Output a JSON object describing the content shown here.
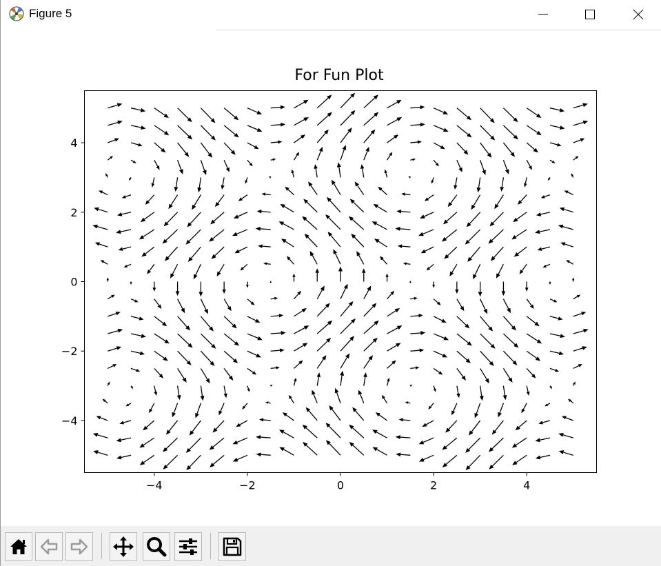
{
  "window": {
    "title": "Figure 5"
  },
  "chart_data": {
    "type": "quiver",
    "title": "For Fun Plot",
    "xlabel": "",
    "ylabel": "",
    "xlim": [
      -5.5,
      5.5
    ],
    "ylim": [
      -5.5,
      5.5
    ],
    "xticks": [
      -4,
      -2,
      0,
      2,
      4
    ],
    "yticks": [
      -4,
      -2,
      0,
      2,
      4
    ],
    "xtick_labels": [
      "−4",
      "−2",
      "0",
      "2",
      "4"
    ],
    "ytick_labels": [
      "−4",
      "−2",
      "0",
      "2",
      "4"
    ],
    "grid": false,
    "field": {
      "x_range": [
        -5,
        5
      ],
      "y_range": [
        -5,
        5
      ],
      "n_x": 21,
      "n_y": 21,
      "u": "-sin(y)",
      "v": "cos(x)"
    },
    "arrow_color": "#000000"
  },
  "toolbar": {
    "buttons": [
      {
        "name": "home-button",
        "icon": "home-icon"
      },
      {
        "name": "back-button",
        "icon": "arrow-left-icon"
      },
      {
        "name": "forward-button",
        "icon": "arrow-right-icon"
      },
      {
        "name": "pan-button",
        "icon": "move-icon"
      },
      {
        "name": "zoom-button",
        "icon": "magnifier-icon"
      },
      {
        "name": "subplots-button",
        "icon": "sliders-icon"
      },
      {
        "name": "save-button",
        "icon": "floppy-disk-icon"
      }
    ]
  }
}
